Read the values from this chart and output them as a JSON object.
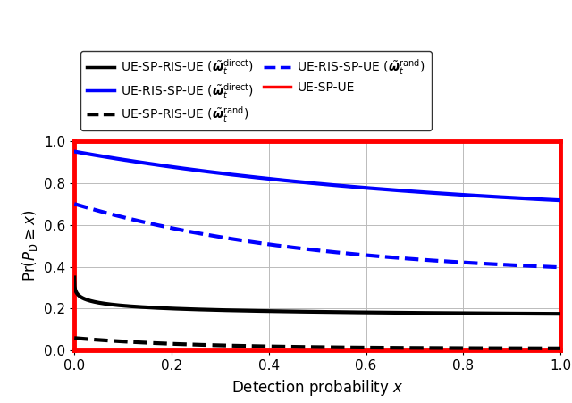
{
  "xlabel": "Detection probability $x$",
  "ylabel": "$\\Pr(P_{\\mathrm{D}} \\geq x)$",
  "xlim": [
    0,
    1
  ],
  "ylim": [
    0,
    1
  ],
  "plot_border_color": "red",
  "plot_border_linewidth": 3.5,
  "grid_color": "#bbbbbb",
  "curves": {
    "ue_sp_ue": {
      "color": "red",
      "linestyle": "solid",
      "linewidth": 3.5
    },
    "ue_ris_sp_ue_direct": {
      "color": "blue",
      "linestyle": "solid",
      "linewidth": 3.0,
      "a": 0.95,
      "b": 1.1,
      "c": 0.0
    },
    "ue_ris_sp_ue_rand": {
      "color": "blue",
      "linestyle": "dashed",
      "linewidth": 3.0,
      "a": 0.7,
      "b": 1.2,
      "c": 0.0
    },
    "ue_sp_ris_ue_direct": {
      "color": "black",
      "linestyle": "solid",
      "linewidth": 3.0
    },
    "ue_sp_ris_ue_rand": {
      "color": "black",
      "linestyle": "dashed",
      "linewidth": 3.0
    }
  },
  "legend_fontsize": 10,
  "tick_fontsize": 11,
  "axis_fontsize": 12
}
